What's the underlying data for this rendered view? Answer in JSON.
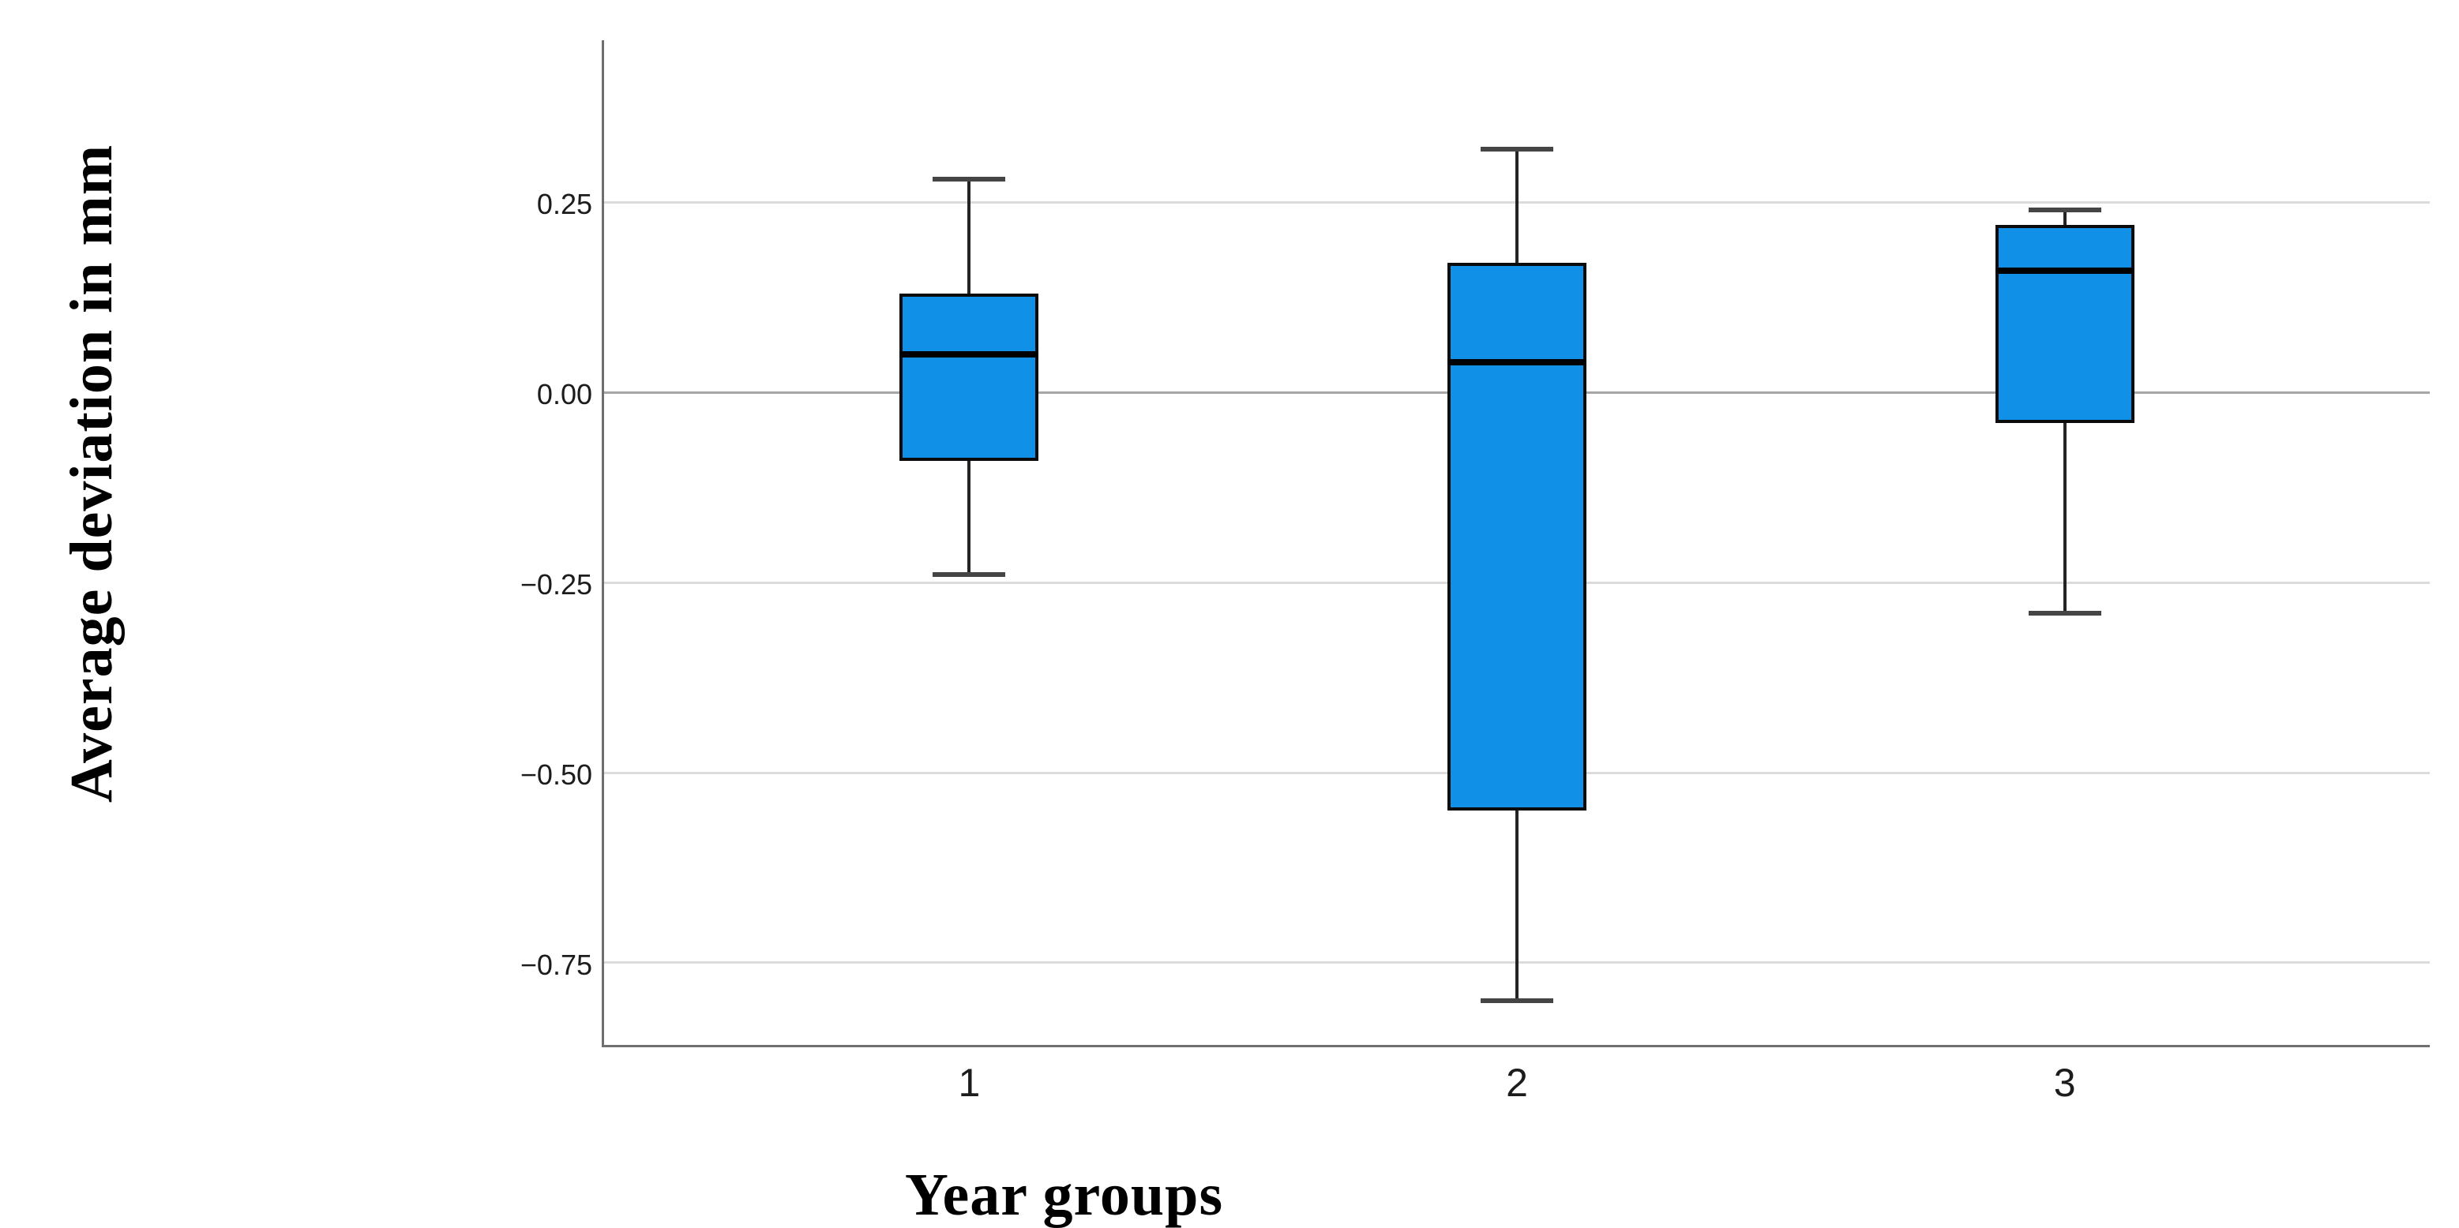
{
  "figure": {
    "background": "#ffffff"
  },
  "chart_data": {
    "type": "box",
    "title": "",
    "xlabel": "Year groups",
    "ylabel": "Average deviation in mm",
    "categories": [
      "1",
      "2",
      "3"
    ],
    "series": [
      {
        "category": "1",
        "whisker_low": -0.24,
        "q1": -0.09,
        "median": 0.05,
        "q3": 0.13,
        "whisker_high": 0.28
      },
      {
        "category": "2",
        "whisker_low": -0.8,
        "q1": -0.55,
        "median": 0.04,
        "q3": 0.17,
        "whisker_high": 0.32
      },
      {
        "category": "3",
        "whisker_low": -0.29,
        "q1": -0.04,
        "median": 0.16,
        "q3": 0.22,
        "whisker_high": 0.24
      }
    ],
    "y_ticks": [
      0.25,
      0.0,
      -0.25,
      -0.5,
      -0.75
    ],
    "y_tick_labels": [
      "0.25",
      "0.00",
      "−0.25",
      "−0.50",
      "−0.75"
    ],
    "ylim": [
      -0.858,
      0.463
    ],
    "grid": "horizontal",
    "legend_position": "none",
    "colors": {
      "box_fill": "#1190E8",
      "box_border": "#0b0b0b",
      "median_line": "#000000",
      "whisker": "#242424",
      "whisker_cap": "#454545",
      "gridline": "#dbdbdb",
      "zero_gridline": "#a6a6a6",
      "axis_line": "#6f6f6f",
      "tick_text": "#1c1c1c"
    }
  }
}
